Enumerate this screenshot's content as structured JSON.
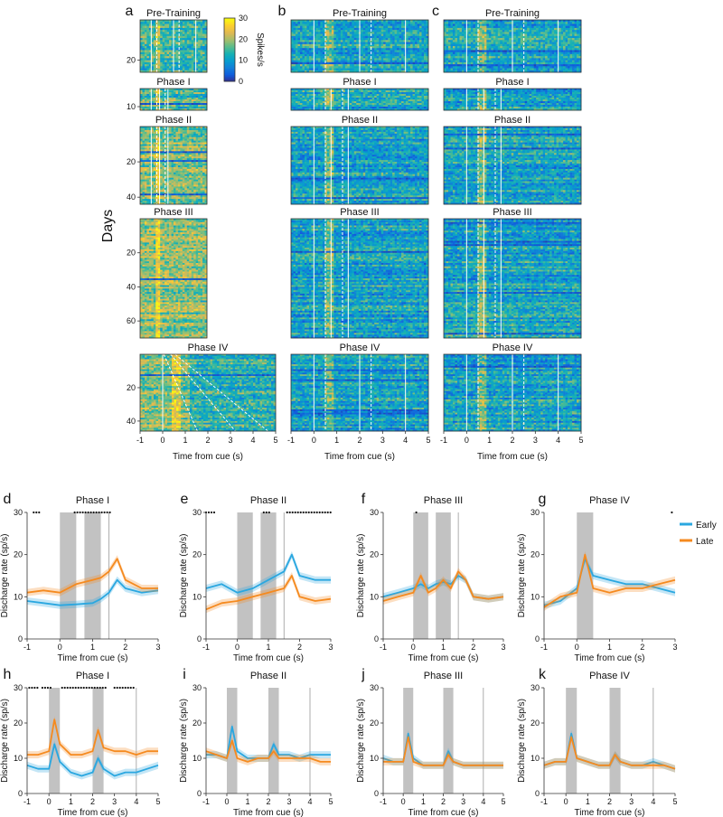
{
  "figure": {
    "days_label": "Days",
    "colorbar": {
      "label": "Spikes/s",
      "ticks": [
        "30",
        "20",
        "10",
        "0"
      ]
    },
    "heatmap_xlabel": "Time from cue (s)",
    "trace_xlabel": "Time from cue (s)",
    "trace_ylabel": "Discharge rate (sp/s)",
    "legend": {
      "early": "Early",
      "late": "Late"
    },
    "colors": {
      "early": "#2aa7e0",
      "late": "#f58a1f",
      "shade": "#b3b3b3"
    }
  },
  "chart_data": [
    {
      "panel": "a",
      "type": "heatmap",
      "xlabel": "Time from cue (s)",
      "ylabel": "Days",
      "x_ticks": [
        "-1",
        "0",
        "1",
        "2",
        "3",
        "4",
        "5"
      ],
      "color_range": [
        0,
        30
      ],
      "blocks": [
        {
          "title": "Pre-Training",
          "y_ticks": [
            "20"
          ]
        },
        {
          "title": "Phase I",
          "y_ticks": [
            "10"
          ]
        },
        {
          "title": "Phase II",
          "y_ticks": [
            "20",
            "40"
          ]
        },
        {
          "title": "Phase III",
          "y_ticks": [
            "20",
            "40",
            "60"
          ]
        },
        {
          "title": "Phase IV",
          "y_ticks": [
            "20",
            "40"
          ]
        }
      ]
    },
    {
      "panel": "b",
      "type": "heatmap",
      "xlabel": "Time from cue (s)",
      "x_ticks": [
        "-1",
        "0",
        "1",
        "2",
        "3",
        "4",
        "5"
      ],
      "color_range": [
        0,
        30
      ],
      "blocks": [
        {
          "title": "Pre-Training"
        },
        {
          "title": "Phase I"
        },
        {
          "title": "Phase II"
        },
        {
          "title": "Phase III"
        },
        {
          "title": "Phase IV"
        }
      ]
    },
    {
      "panel": "c",
      "type": "heatmap",
      "xlabel": "Time from cue (s)",
      "x_ticks": [
        "-1",
        "0",
        "1",
        "2",
        "3",
        "4",
        "5"
      ],
      "color_range": [
        0,
        30
      ],
      "blocks": [
        {
          "title": "Pre-Training"
        },
        {
          "title": "Phase I"
        },
        {
          "title": "Phase II"
        },
        {
          "title": "Phase III"
        },
        {
          "title": "Phase IV"
        }
      ]
    },
    {
      "panel": "d",
      "type": "line",
      "title": "Phase I",
      "xlim": [
        -1,
        3
      ],
      "ylim": [
        0,
        30
      ],
      "x_ticks": [
        "-1",
        "0",
        "1",
        "2",
        "3"
      ],
      "y_ticks": [
        "0",
        "10",
        "20",
        "30"
      ],
      "shaded": [
        [
          0,
          0.5
        ],
        [
          0.75,
          1.25
        ]
      ],
      "vlines": [
        1.5
      ],
      "sig_ranges": [
        [
          -0.8,
          -0.6
        ],
        [
          0.45,
          1.55
        ]
      ],
      "series": [
        {
          "name": "Early",
          "x": [
            -1,
            -0.5,
            0,
            0.5,
            1,
            1.25,
            1.5,
            1.75,
            2,
            2.5,
            3
          ],
          "values": [
            9,
            8.5,
            8,
            8.2,
            8.5,
            9.5,
            11,
            14,
            12,
            11,
            11.5
          ]
        },
        {
          "name": "Late",
          "x": [
            -1,
            -0.5,
            0,
            0.5,
            1,
            1.25,
            1.5,
            1.75,
            2,
            2.5,
            3
          ],
          "values": [
            11,
            11.5,
            11,
            13,
            14,
            14.5,
            16,
            19,
            14,
            12,
            12
          ]
        }
      ]
    },
    {
      "panel": "e",
      "type": "line",
      "title": "Phase II",
      "xlim": [
        -1,
        3
      ],
      "ylim": [
        0,
        30
      ],
      "x_ticks": [
        "-1",
        "0",
        "1",
        "2",
        "3"
      ],
      "y_ticks": [
        "0",
        "10",
        "20",
        "30"
      ],
      "shaded": [
        [
          0,
          0.5
        ],
        [
          0.75,
          1.25
        ]
      ],
      "vlines": [
        1.5
      ],
      "sig_ranges": [
        [
          -1,
          -0.7
        ],
        [
          0.85,
          1.05
        ],
        [
          1.6,
          3
        ]
      ],
      "series": [
        {
          "name": "Early",
          "x": [
            -1,
            -0.5,
            0,
            0.5,
            1,
            1.5,
            1.75,
            2,
            2.5,
            3
          ],
          "values": [
            12,
            13,
            11,
            12,
            14,
            16,
            20,
            15,
            14,
            14
          ]
        },
        {
          "name": "Late",
          "x": [
            -1,
            -0.5,
            0,
            0.5,
            1,
            1.5,
            1.75,
            2,
            2.5,
            3
          ],
          "values": [
            7,
            8.5,
            9,
            10,
            11,
            12,
            15,
            10,
            9,
            9.5
          ]
        }
      ]
    },
    {
      "panel": "f",
      "type": "line",
      "title": "Phase III",
      "xlim": [
        -1,
        3
      ],
      "ylim": [
        0,
        30
      ],
      "x_ticks": [
        "-1",
        "0",
        "1",
        "2",
        "3"
      ],
      "y_ticks": [
        "0",
        "10",
        "20",
        "30"
      ],
      "shaded": [
        [
          0,
          0.5
        ],
        [
          0.75,
          1.25
        ]
      ],
      "vlines": [
        1.5
      ],
      "sig_ranges": [
        [
          0.1,
          0.15
        ]
      ],
      "series": [
        {
          "name": "Early",
          "x": [
            -1,
            -0.5,
            0,
            0.25,
            0.5,
            0.75,
            1,
            1.25,
            1.5,
            1.75,
            2,
            2.5,
            3
          ],
          "values": [
            10,
            11,
            12,
            13,
            12,
            13,
            13.5,
            13,
            15,
            14,
            10,
            9.5,
            10
          ]
        },
        {
          "name": "Late",
          "x": [
            -1,
            -0.5,
            0,
            0.25,
            0.5,
            0.75,
            1,
            1.25,
            1.5,
            1.75,
            2,
            2.5,
            3
          ],
          "values": [
            9,
            10,
            11,
            15,
            11,
            12,
            14,
            12,
            16,
            14,
            10,
            9.5,
            10
          ]
        }
      ]
    },
    {
      "panel": "g",
      "type": "line",
      "title": "Phase IV",
      "xlim": [
        -1,
        3
      ],
      "ylim": [
        0,
        30
      ],
      "x_ticks": [
        "-1",
        "0",
        "1",
        "2",
        "3"
      ],
      "y_ticks": [
        "0",
        "10",
        "20",
        "30"
      ],
      "shaded": [
        [
          0,
          0.5
        ]
      ],
      "vlines": [],
      "sig_ranges": [
        [
          2.9,
          2.95
        ]
      ],
      "series": [
        {
          "name": "Early",
          "x": [
            -1,
            -0.5,
            0,
            0.25,
            0.5,
            1,
            1.5,
            2,
            2.5,
            3
          ],
          "values": [
            8,
            9,
            12,
            19,
            15,
            14,
            13,
            13,
            12,
            11
          ]
        },
        {
          "name": "Late",
          "x": [
            -1,
            -0.5,
            0,
            0.25,
            0.5,
            1,
            1.5,
            2,
            2.5,
            3
          ],
          "values": [
            7.5,
            10,
            11,
            20,
            12,
            11,
            12,
            12,
            13,
            14
          ]
        }
      ]
    },
    {
      "panel": "h",
      "type": "line",
      "title": "Phase I",
      "xlim": [
        -1,
        5
      ],
      "ylim": [
        0,
        30
      ],
      "x_ticks": [
        "-1",
        "0",
        "1",
        "2",
        "3",
        "4",
        "5"
      ],
      "y_ticks": [
        "0",
        "10",
        "20",
        "30"
      ],
      "shaded": [
        [
          0,
          0.5
        ],
        [
          2,
          2.5
        ]
      ],
      "vlines": [
        4
      ],
      "sig_ranges": [
        [
          -0.9,
          -0.5
        ],
        [
          -0.3,
          0.1
        ],
        [
          0.6,
          2.7
        ],
        [
          3,
          3.9
        ]
      ],
      "series": [
        {
          "name": "Early",
          "x": [
            -1,
            -0.5,
            0,
            0.25,
            0.5,
            1,
            1.5,
            2,
            2.25,
            2.5,
            3,
            3.5,
            4,
            4.5,
            5
          ],
          "values": [
            8,
            7,
            7,
            14,
            9,
            6,
            5,
            6,
            10,
            7,
            5,
            6,
            6,
            7,
            8
          ]
        },
        {
          "name": "Late",
          "x": [
            -1,
            -0.5,
            0,
            0.25,
            0.5,
            1,
            1.5,
            2,
            2.25,
            2.5,
            3,
            3.5,
            4,
            4.5,
            5
          ],
          "values": [
            11,
            11,
            12,
            21,
            14,
            11,
            11,
            12,
            18,
            13,
            12,
            12,
            11,
            12,
            12
          ]
        }
      ]
    },
    {
      "panel": "i",
      "type": "line",
      "title": "Phase II",
      "xlim": [
        -1,
        5
      ],
      "ylim": [
        0,
        30
      ],
      "x_ticks": [
        "-1",
        "0",
        "1",
        "2",
        "3",
        "4",
        "5"
      ],
      "y_ticks": [
        "0",
        "10",
        "20",
        "30"
      ],
      "shaded": [
        [
          0,
          0.5
        ],
        [
          2,
          2.5
        ]
      ],
      "vlines": [
        4
      ],
      "sig_ranges": [],
      "series": [
        {
          "name": "Early",
          "x": [
            -1,
            -0.5,
            0,
            0.25,
            0.5,
            1,
            1.5,
            2,
            2.25,
            2.5,
            3,
            3.5,
            4,
            4.5,
            5
          ],
          "values": [
            11,
            11,
            10,
            19,
            12,
            10,
            10,
            10,
            14,
            11,
            11,
            10,
            11,
            11,
            11
          ]
        },
        {
          "name": "Late",
          "x": [
            -1,
            -0.5,
            0,
            0.25,
            0.5,
            1,
            1.5,
            2,
            2.25,
            2.5,
            3,
            3.5,
            4,
            4.5,
            5
          ],
          "values": [
            12,
            11,
            10,
            15,
            10,
            9,
            10,
            10,
            12,
            10,
            10,
            10,
            10,
            9,
            9
          ]
        }
      ]
    },
    {
      "panel": "j",
      "type": "line",
      "title": "Phase III",
      "xlim": [
        -1,
        5
      ],
      "ylim": [
        0,
        30
      ],
      "x_ticks": [
        "-1",
        "0",
        "1",
        "2",
        "3",
        "4",
        "5"
      ],
      "y_ticks": [
        "0",
        "10",
        "20",
        "30"
      ],
      "shaded": [
        [
          0,
          0.5
        ],
        [
          2,
          2.5
        ]
      ],
      "vlines": [
        4
      ],
      "sig_ranges": [],
      "series": [
        {
          "name": "Early",
          "x": [
            -1,
            -0.5,
            0,
            0.25,
            0.5,
            1,
            1.5,
            2,
            2.25,
            2.5,
            3,
            3.5,
            4,
            4.5,
            5
          ],
          "values": [
            10,
            9,
            9,
            17,
            10,
            8,
            8,
            8,
            12,
            9,
            8,
            8,
            8,
            8,
            8
          ]
        },
        {
          "name": "Late",
          "x": [
            -1,
            -0.5,
            0,
            0.25,
            0.5,
            1,
            1.5,
            2,
            2.25,
            2.5,
            3,
            3.5,
            4,
            4.5,
            5
          ],
          "values": [
            9,
            9,
            9,
            16,
            9,
            8,
            8,
            8,
            11,
            9,
            8,
            8,
            8,
            8,
            8
          ]
        }
      ]
    },
    {
      "panel": "k",
      "type": "line",
      "title": "Phase IV",
      "xlim": [
        -1,
        5
      ],
      "ylim": [
        0,
        30
      ],
      "x_ticks": [
        "-1",
        "0",
        "1",
        "2",
        "3",
        "4",
        "5"
      ],
      "y_ticks": [
        "0",
        "10",
        "20",
        "30"
      ],
      "shaded": [
        [
          0,
          0.5
        ],
        [
          2,
          2.5
        ]
      ],
      "vlines": [
        4
      ],
      "sig_ranges": [],
      "series": [
        {
          "name": "Early",
          "x": [
            -1,
            -0.5,
            0,
            0.25,
            0.5,
            1,
            1.5,
            2,
            2.25,
            2.5,
            3,
            3.5,
            4,
            4.5,
            5
          ],
          "values": [
            8,
            9,
            9,
            17,
            10,
            9,
            8,
            8,
            11,
            9,
            8,
            8,
            9,
            8,
            7
          ]
        },
        {
          "name": "Late",
          "x": [
            -1,
            -0.5,
            0,
            0.25,
            0.5,
            1,
            1.5,
            2,
            2.25,
            2.5,
            3,
            3.5,
            4,
            4.5,
            5
          ],
          "values": [
            8,
            9,
            9,
            16,
            10,
            9,
            8,
            8,
            11,
            9,
            8,
            8,
            8,
            8,
            7
          ]
        }
      ]
    }
  ]
}
